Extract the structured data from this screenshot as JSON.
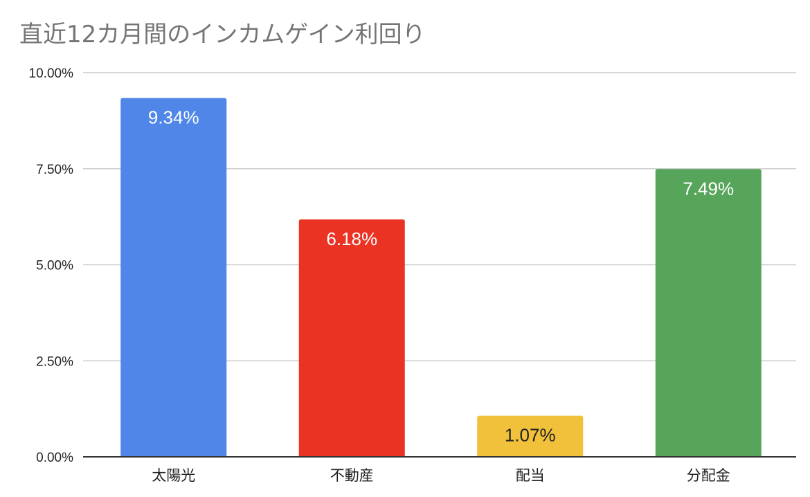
{
  "chart_data": {
    "type": "bar",
    "title": "直近12カ月間のインカムゲイン利回り",
    "categories": [
      "太陽光",
      "不動産",
      "配当",
      "分配金"
    ],
    "values": [
      9.34,
      6.18,
      1.07,
      7.49
    ],
    "data_labels": [
      "9.34%",
      "6.18%",
      "1.07%",
      "7.49%"
    ],
    "colors": [
      "#4f86e8",
      "#ea3323",
      "#f1c13b",
      "#57a55a"
    ],
    "label_colors": [
      "#ffffff",
      "#ffffff",
      "#222222",
      "#ffffff"
    ],
    "ylim": [
      0,
      10
    ],
    "yticks": [
      0,
      2.5,
      5,
      7.5,
      10
    ],
    "ytick_labels": [
      "0.00%",
      "2.50%",
      "5.00%",
      "7.50%",
      "10.00%"
    ],
    "grid": true,
    "legend": "none"
  }
}
